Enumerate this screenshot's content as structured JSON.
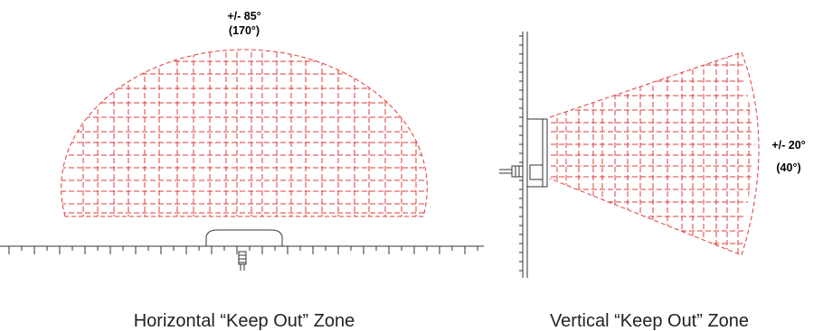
{
  "horizontal": {
    "angle_line1": "+/- 85°",
    "angle_line2": "(170°)",
    "caption": "Horizontal “Keep Out” Zone"
  },
  "vertical": {
    "angle_line1": "+/- 20°",
    "angle_line2": "(40°)",
    "caption": "Vertical “Keep Out” Zone"
  },
  "colors": {
    "zone": "#e23b3b",
    "hardware": "#333333",
    "text": "#000000"
  }
}
